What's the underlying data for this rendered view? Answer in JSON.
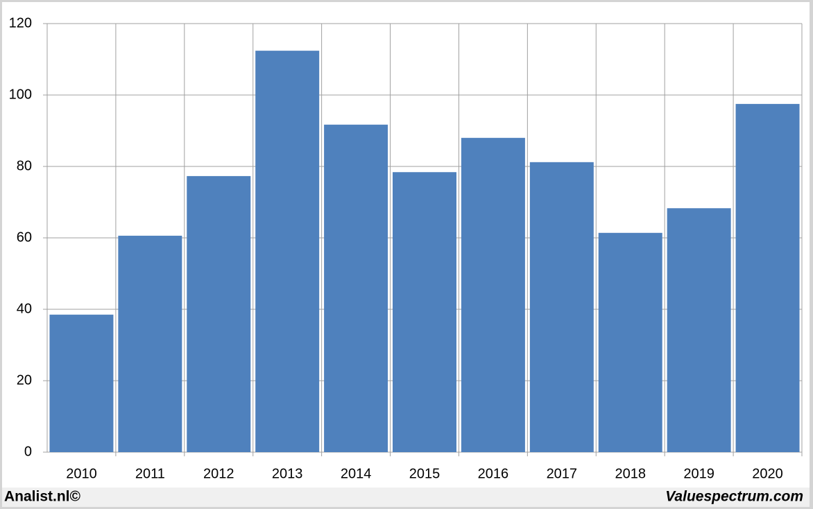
{
  "chart_data": {
    "type": "bar",
    "categories": [
      "2010",
      "2011",
      "2012",
      "2013",
      "2014",
      "2015",
      "2016",
      "2017",
      "2018",
      "2019",
      "2020"
    ],
    "values": [
      38.5,
      60.6,
      77.3,
      112.4,
      91.7,
      78.4,
      88.0,
      81.2,
      61.4,
      68.3,
      97.5
    ],
    "color": "#4f81bd",
    "ylim": [
      0,
      120
    ],
    "yticks": [
      0,
      20,
      40,
      60,
      80,
      100,
      120
    ],
    "grid": true
  },
  "footer": {
    "left": "Analist.nl©",
    "right": "Valuespectrum.com"
  }
}
